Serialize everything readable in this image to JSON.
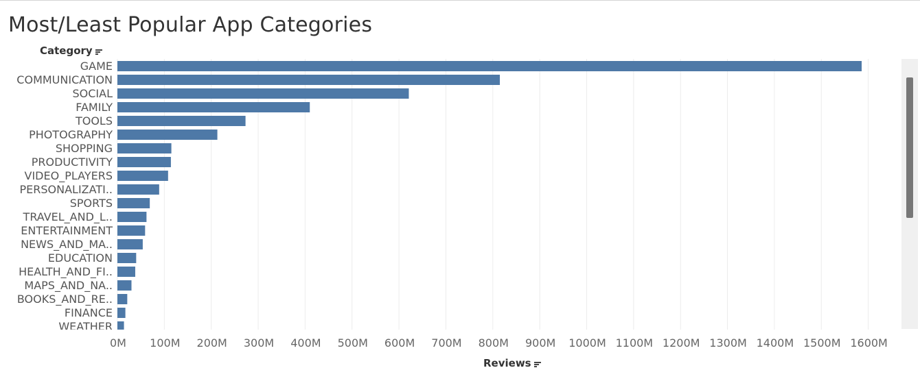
{
  "title": "Most/Least Popular App Categories",
  "y_axis_title": "Category",
  "x_axis_title": "Reviews",
  "colors": {
    "bar": "#4e79a7",
    "grid": "#ececec",
    "text": "#555555"
  },
  "chart_data": {
    "type": "bar",
    "orientation": "horizontal",
    "title": "Most/Least Popular App Categories",
    "xlabel": "Reviews",
    "ylabel": "Category",
    "xlim": [
      0,
      1650
    ],
    "x_unit": "M",
    "x_ticks": [
      "0M",
      "100M",
      "200M",
      "300M",
      "400M",
      "500M",
      "600M",
      "700M",
      "800M",
      "900M",
      "1000M",
      "1100M",
      "1200M",
      "1300M",
      "1400M",
      "1500M",
      "1600M"
    ],
    "categories": [
      "GAME",
      "COMMUNICATION",
      "SOCIAL",
      "FAMILY",
      "TOOLS",
      "PHOTOGRAPHY",
      "SHOPPING",
      "PRODUCTIVITY",
      "VIDEO_PLAYERS",
      "PERSONALIZATI..",
      "SPORTS",
      "TRAVEL_AND_L..",
      "ENTERTAINMENT",
      "NEWS_AND_MA..",
      "EDUCATION",
      "HEALTH_AND_FI..",
      "MAPS_AND_NA..",
      "BOOKS_AND_RE..",
      "FINANCE",
      "WEATHER"
    ],
    "values": [
      1586,
      815,
      621,
      410,
      273,
      213,
      115,
      114,
      108,
      89,
      69,
      62,
      59,
      54,
      40,
      38,
      30,
      21,
      17,
      14
    ],
    "grid": true
  }
}
